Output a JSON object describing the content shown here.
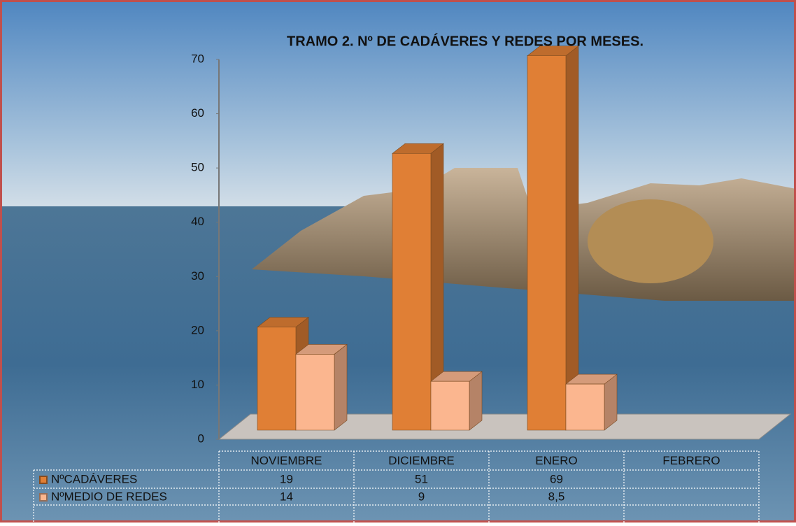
{
  "chart_data": {
    "type": "bar",
    "title": "TRAMO 2. Nº DE CADÁVERES  Y REDES POR MESES.",
    "categories": [
      "NOVIEMBRE",
      "DICIEMBRE",
      "ENERO",
      "FEBRERO"
    ],
    "series": [
      {
        "name": "NºCADÁVERES",
        "color": "#e07f35",
        "values": [
          19,
          51,
          69,
          null
        ]
      },
      {
        "name": "NºMEDIO DE REDES",
        "color": "#fbb68f",
        "values": [
          14,
          9,
          8.5,
          null
        ],
        "value_labels": [
          "14",
          "9",
          "8,5",
          null
        ]
      }
    ],
    "ylim": [
      0,
      70
    ],
    "yticks": [
      0,
      10,
      20,
      30,
      40,
      50,
      60,
      70
    ],
    "data_table": true
  }
}
